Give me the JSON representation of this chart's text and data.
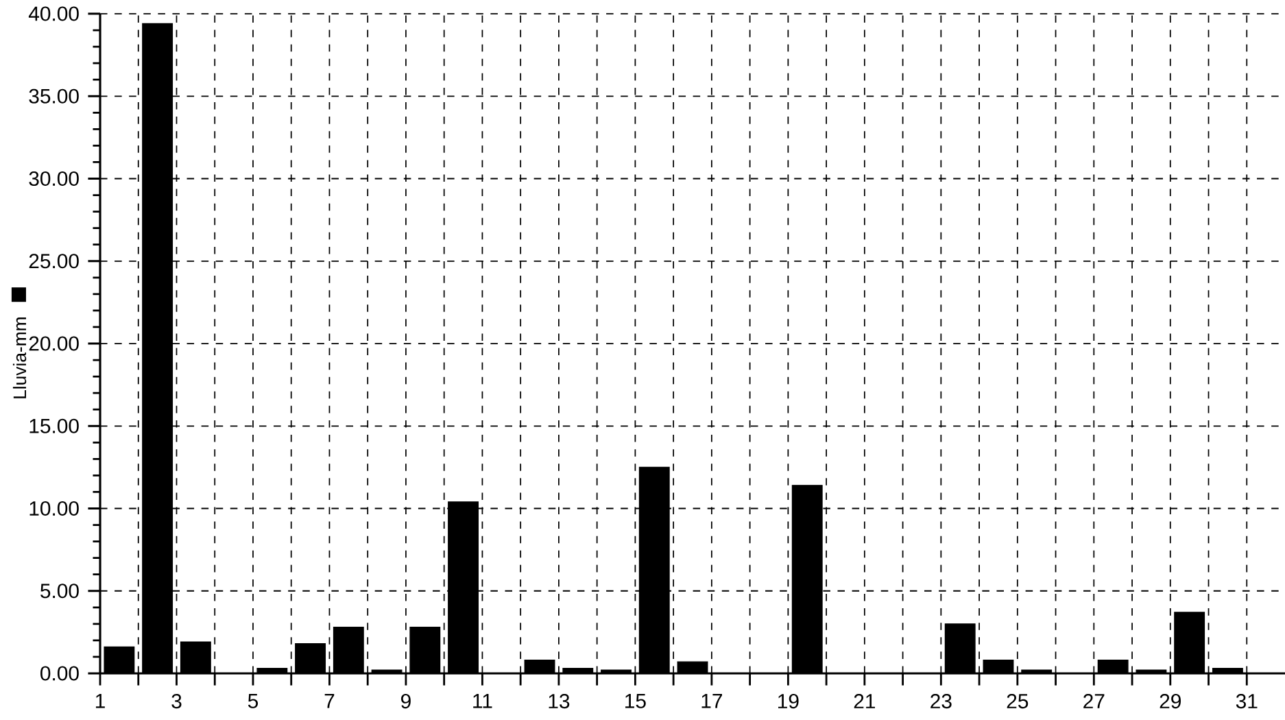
{
  "chart_data": {
    "type": "bar",
    "ylabel": "Lluvia-mm",
    "x": [
      1.5,
      2.5,
      3.5,
      4.5,
      5.5,
      6.5,
      7.5,
      8.5,
      9.5,
      10.5,
      11.5,
      12.5,
      13.5,
      14.5,
      15.5,
      16.5,
      17.5,
      18.5,
      19.5,
      20.5,
      21.5,
      22.5,
      23.5,
      24.5,
      25.5,
      26.5,
      27.5,
      28.5,
      29.5,
      30.5,
      31.5
    ],
    "values": [
      1.6,
      39.4,
      1.9,
      0,
      0.3,
      1.8,
      2.8,
      0.2,
      2.8,
      10.4,
      0,
      0.8,
      0.3,
      0.2,
      12.5,
      0.7,
      0,
      0,
      11.4,
      0,
      0,
      0,
      3.0,
      0.8,
      0.2,
      0,
      0.8,
      0.2,
      3.7,
      0.3,
      0
    ],
    "color": "#000000",
    "xlim": [
      1,
      32
    ],
    "xticks": [
      1,
      {
        "value": 2,
        "label": null
      },
      3,
      {
        "value": 4,
        "label": null
      },
      5,
      {
        "value": 6,
        "label": null
      },
      7,
      {
        "value": 8,
        "label": null
      },
      9,
      {
        "value": 10,
        "label": null
      },
      11,
      {
        "value": 12,
        "label": null
      },
      13,
      {
        "value": 14,
        "label": null
      },
      15,
      {
        "value": 16,
        "label": null
      },
      17,
      {
        "value": 18,
        "label": null
      },
      19,
      {
        "value": 20,
        "label": null
      },
      21,
      {
        "value": 22,
        "label": null
      },
      23,
      {
        "value": 24,
        "label": null
      },
      25,
      {
        "value": 26,
        "label": null
      },
      27,
      {
        "value": 28,
        "label": null
      },
      29,
      {
        "value": 30,
        "label": null
      },
      31
    ],
    "ylim": [
      0,
      40
    ],
    "yticks": [
      {
        "value": 0,
        "label": "0.00"
      },
      {
        "value": 5,
        "label": "5.00"
      },
      {
        "value": 10,
        "label": "10.00"
      },
      {
        "value": 15,
        "label": "15.00"
      },
      {
        "value": 20,
        "label": "20.00"
      },
      {
        "value": 25,
        "label": "25.00"
      },
      {
        "value": 30,
        "label": "30.00"
      },
      {
        "value": 35,
        "label": "35.00"
      },
      {
        "value": 40,
        "label": "40.00"
      }
    ],
    "grid": true
  }
}
